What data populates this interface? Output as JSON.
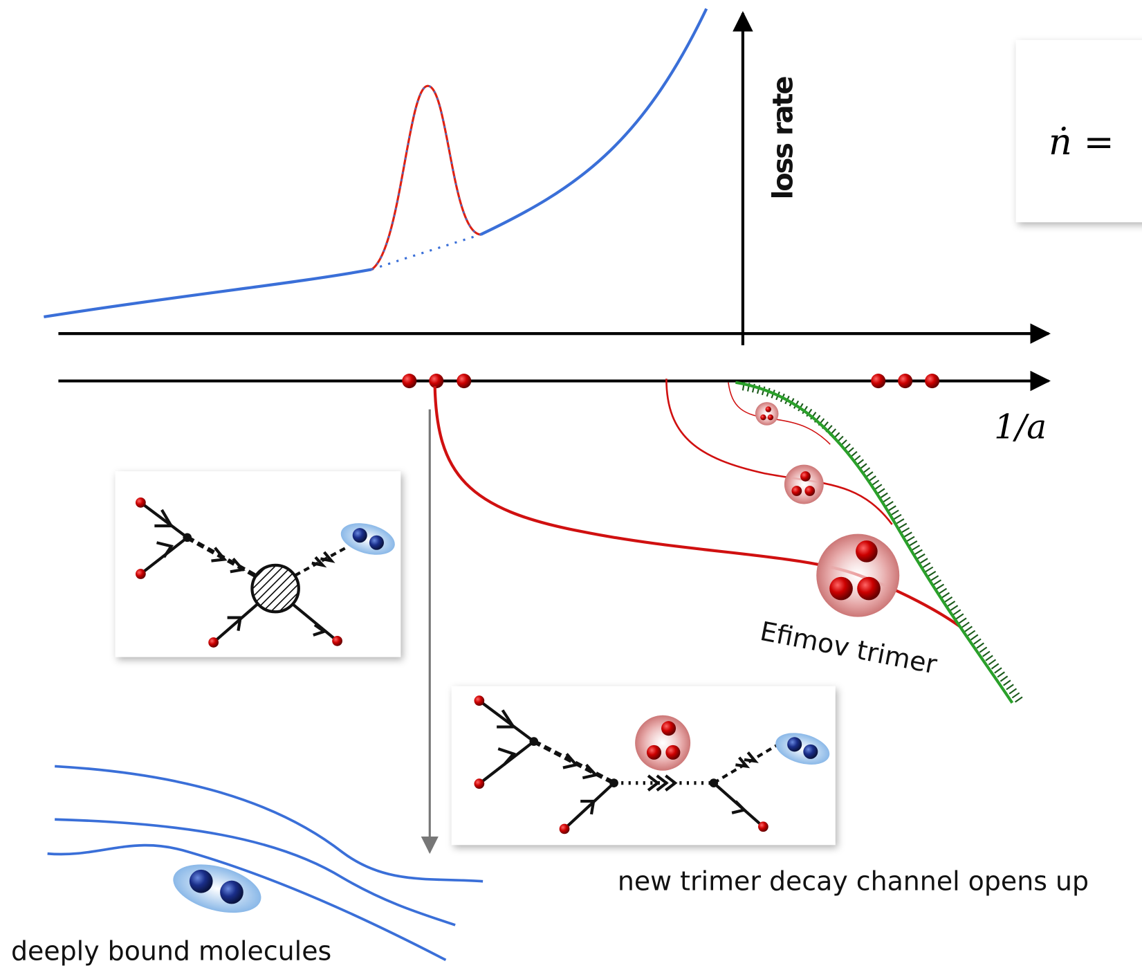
{
  "axis_label": "loss rate",
  "formula": "ṅ =",
  "x_axis_label": "1/a",
  "trimer_label": "Efimov trimer",
  "channel_label": "new trimer decay channel opens up",
  "molecule_label": "deeply bound molecules"
}
